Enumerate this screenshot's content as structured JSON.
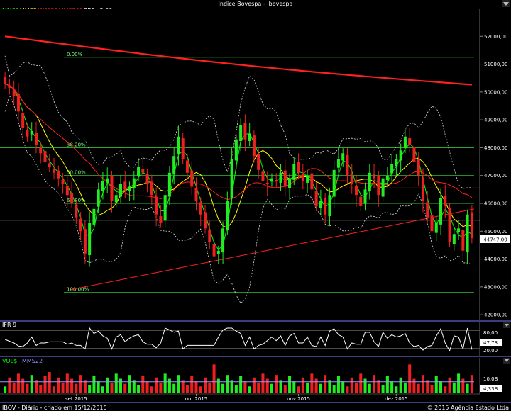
{
  "window": {
    "title": "Indice Bovespa - Ibovespa"
  },
  "legend_main": [
    {
      "label": "MMS3",
      "color": "#00ff00"
    },
    {
      "label": "MMS8",
      "color": "#ffff00"
    },
    {
      "label": "MMS20",
      "color": "#ff2020"
    },
    {
      "label": "MMS200",
      "color": "#ff2020"
    },
    {
      "label": "BB9±2,00",
      "color": "#ffffff"
    }
  ],
  "price_axis": {
    "ticks": [
      "52000,00",
      "51000,00",
      "50000,00",
      "49000,00",
      "48000,00",
      "47000,00",
      "46000,00",
      "45000,00",
      "44000,00",
      "43000,00",
      "42000,00"
    ],
    "current_label": "44747,00"
  },
  "fibonacci": [
    {
      "label": "0.00%",
      "value": 51250
    },
    {
      "label": "38.20%",
      "value": 48000
    },
    {
      "label": "50.00%",
      "value": 47000
    },
    {
      "label": "61.80%",
      "value": 46000
    },
    {
      "label": "100.00%",
      "value": 42800
    }
  ],
  "rsi_panel": {
    "title": "IFR 9",
    "ticks": [
      "80,00",
      "20,00"
    ],
    "current_label": "47,73"
  },
  "volume_panel": {
    "title": "VOL$",
    "ma_label": "MMS22",
    "ticks": [
      "10,0B"
    ],
    "current_label": "4,33B"
  },
  "date_axis": [
    "set 2015",
    "out 2015",
    "nov 2015",
    "dez 2015"
  ],
  "footer": {
    "left": "IBOV - Diário - criado em 15/12/2015",
    "right": "© 2015 Agência Estado Ltda"
  },
  "chart_data": {
    "type": "candlestick",
    "title": "Indice Bovespa - Ibovespa",
    "ylim": [
      41800,
      53000
    ],
    "series_close": [
      50300,
      50150,
      49850,
      49300,
      48700,
      48400,
      48600,
      48100,
      47800,
      47500,
      47300,
      47100,
      46900,
      46700,
      46300,
      46000,
      45500,
      45000,
      44200,
      45300,
      45800,
      46500,
      46800,
      46900,
      46100,
      46300,
      46700,
      46500,
      46600,
      46900,
      47300,
      47100,
      46700,
      46300,
      45600,
      45300,
      46300,
      47100,
      47700,
      48400,
      47600,
      47100,
      46600,
      46100,
      45600,
      45100,
      44600,
      44100,
      44300,
      45100,
      46100,
      47600,
      48300,
      48800,
      48300,
      48500,
      47700,
      47200,
      46800,
      46700,
      46900,
      46800,
      47100,
      46600,
      46900,
      47400,
      47100,
      46800,
      47000,
      46500,
      45900,
      46100,
      45600,
      46300,
      47200,
      47600,
      47800,
      47000,
      46700,
      46300,
      45900,
      46500,
      47100,
      46900,
      46300,
      46900,
      47000,
      47400,
      47600,
      47900,
      48400,
      48100,
      47500,
      47000,
      46100,
      45500,
      45000,
      45300,
      46200,
      45900,
      44600,
      44900,
      45100,
      44300,
      45600,
      44747
    ]
  }
}
